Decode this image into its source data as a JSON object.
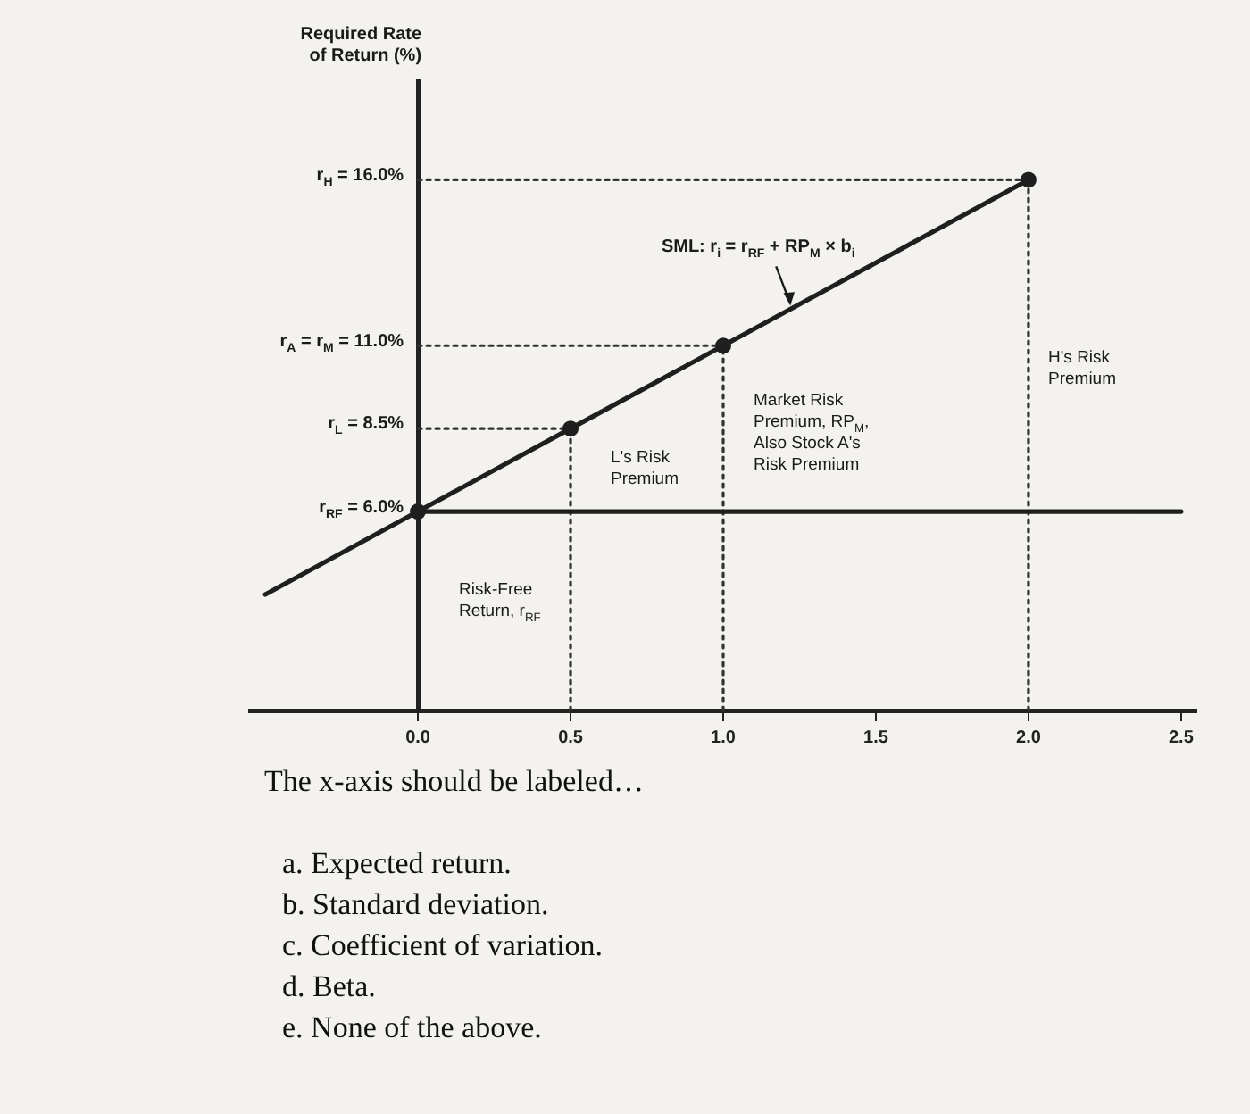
{
  "chart_data": {
    "type": "line",
    "ylabel": "Required Rate of Return (%)",
    "xlim": [
      -0.55,
      2.55
    ],
    "xticks": [
      {
        "value": 0,
        "label": "0.0"
      },
      0.5,
      {
        "value": 1,
        "label": "1.0"
      },
      1.5,
      {
        "value": 2,
        "label": "2.0"
      },
      2.5
    ],
    "ylim": [
      0,
      19
    ],
    "yticks": [
      {
        "value": 6,
        "label": "r$_{RF}$ = 6.0%"
      },
      {
        "value": 8.5,
        "label": "r$_{L}$ = 8.5%"
      },
      {
        "value": 11,
        "label": "r$_{A}$ = r$_{M}$ = 11.0%"
      },
      {
        "value": 16,
        "label": "r$_{H}$ = 16.0%"
      }
    ],
    "grid": false,
    "series": [
      {
        "type": "line",
        "color": "#1f1f1f",
        "x": [
          -0.5,
          0,
          0.5,
          1,
          2
        ],
        "values": [
          3.5,
          6,
          8.5,
          11,
          16
        ],
        "marker": "none",
        "line_style": "solid"
      },
      {
        "type": "line",
        "color": "#1f1f1f",
        "x": [
          0,
          2.5
        ],
        "values": [
          6,
          6
        ],
        "marker": "none",
        "line_style": "solid"
      },
      {
        "type": "scatter",
        "color": "#1f1f1f",
        "x": [
          0,
          0.5,
          1,
          2
        ],
        "values": [
          6,
          8.5,
          11,
          16
        ],
        "marker": "circle"
      },
      {
        "type": "line",
        "color": "#333333",
        "x": [
          0,
          2
        ],
        "values": [
          16,
          16
        ],
        "marker": "none",
        "line_style": "dotted"
      },
      {
        "type": "line",
        "color": "#333333",
        "x": [
          0,
          1
        ],
        "values": [
          11,
          11
        ],
        "marker": "none",
        "line_style": "dotted"
      },
      {
        "type": "line",
        "color": "#333333",
        "x": [
          0,
          0.5
        ],
        "values": [
          8.5,
          8.5
        ],
        "marker": "none",
        "line_style": "dotted"
      },
      {
        "type": "line",
        "color": "#333333",
        "x": [
          0.5,
          0.5
        ],
        "values": [
          0,
          8.5
        ],
        "marker": "none",
        "line_style": "dotted"
      },
      {
        "type": "line",
        "color": "#333333",
        "x": [
          1,
          1
        ],
        "values": [
          0,
          11
        ],
        "marker": "none",
        "line_style": "dotted"
      },
      {
        "type": "line",
        "color": "#333333",
        "x": [
          2,
          2
        ],
        "values": [
          0,
          16
        ],
        "marker": "none",
        "line_style": "dotted"
      }
    ],
    "annotations": [
      {
        "text": "SML: r$_{i}$ = r$_{RF}$ + RP$_{M}$ × b$_{i}$",
        "x": 1.22,
        "y": 12.1
      },
      "L's Risk Premium",
      "Market Risk Premium, RP$_{M}$, Also Stock A's Risk Premium",
      "H's Risk Premium",
      "Risk-Free Return, r$_{RF}$",
      "The x-axis should be labeled…",
      "a. Expected return.",
      "b. Standard deviation.",
      "c. Coefficient of variation.",
      "d. Beta.",
      "e. None of the above."
    ]
  }
}
